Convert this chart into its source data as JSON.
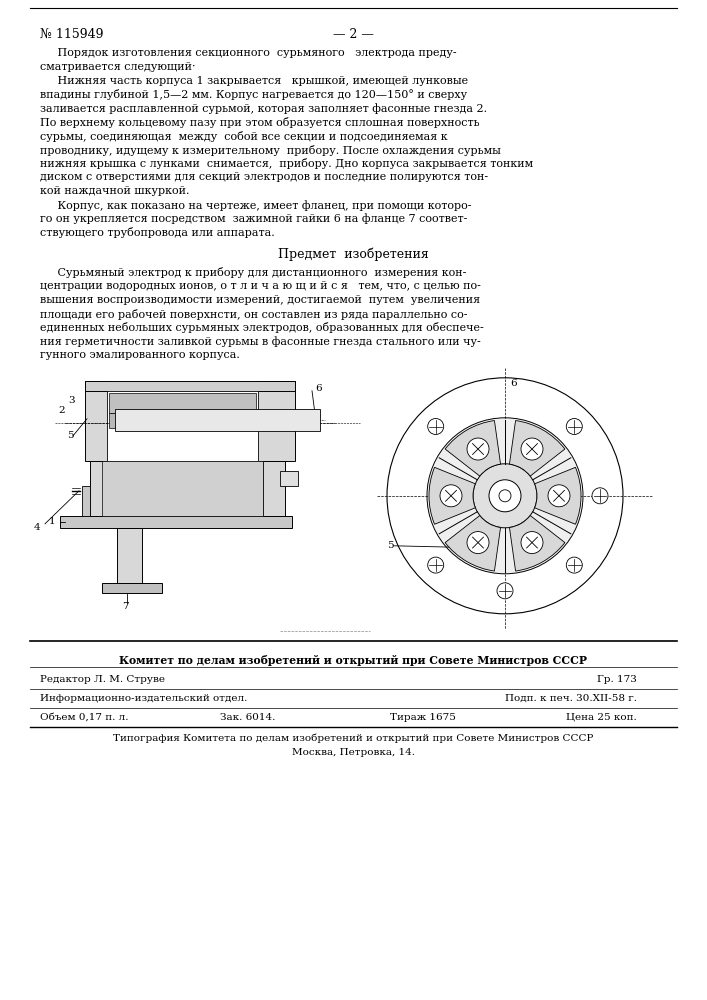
{
  "bg_color": "#ffffff",
  "page_width": 7.07,
  "page_height": 10.0,
  "patent_number": "№ 115949",
  "page_number": "— 2 —",
  "body_text": [
    "     Порядок изготовления секционного  сурьмяного   электрода преду-",
    "сматривается следующий·",
    "     Нижняя часть корпуса 1 закрывается   крышкой, имеющей лунковые",
    "впадины глубиной 1,5—2 мм. Корпус нагревается до 120—150° и сверху",
    "заливается расплавленной сурьмой, которая заполняет фасонные гнезда 2.",
    "По верхнему кольцевому пазу при этом образуется сплошная поверхность",
    "сурьмы, соединяющая  между  собой все секции и подсоединяемая к",
    "проводнику, идущему к измерительному  прибору. После охлаждения сурьмы",
    "нижняя крышка с лунками  снимается,  прибору. Дно корпуса закрывается тонким",
    "диском с отверстиями для секций электродов и последние полируются тон-",
    "кой наждачной шкуркой.",
    "     Корпус, как показано на чертеже, имеет фланец, при помощи которо-",
    "го он укрепляется посредством  зажимной гайки 6 на фланце 7 соответ-",
    "ствующего трубопровода или аппарата."
  ],
  "section_header": "Предмет  изобретения",
  "claim_text": [
    "     Сурьмяный электрод к прибору для дистанционного  измерения кон-",
    "центрации водородных ионов, о т л и ч а ю щ и й с я   тем, что, с целью по-",
    "вышения воспроизводимости измерений, достигаемой  путем  увеличения",
    "площади его рабочей поверхнсти, он составлен из ряда параллельно со-",
    "единенных небольших сурьмяных электродов, образованных для обеспече-",
    "ния герметичности заливкой сурьмы в фасонные гнезда стального или чу-",
    "гунного эмалированного корпуса."
  ],
  "footer_bold": "Комитет по делам изобретений и открытий при Совете Министров СССР",
  "footer_line1_left": "Редактор Л. М. Струве",
  "footer_line1_right": "Гр. 173",
  "footer_line2_left": "Информационно-издательский отдел.",
  "footer_line2_right": "Подп. к печ. 30.XII-58 г.",
  "footer_line3_left": "Объем 0,17 п. л.",
  "footer_line3_mid": "Зак. 6014.",
  "footer_line3_mid2": "Тираж 1675",
  "footer_line3_right": "Цена 25 коп.",
  "footer_line4": "Типография Комитета по делам изобретений и открытий при Совете Министров СССР",
  "footer_line5": "Москва, Петровка, 14."
}
